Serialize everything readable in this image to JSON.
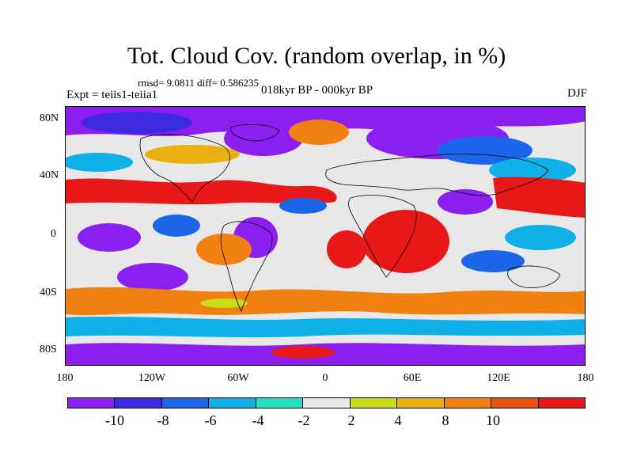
{
  "title": "Tot. Cloud Cov. (random overlap, in %)",
  "stats": "rmsd= 9.0811 diff= 0.586235",
  "experiment": "Expt = teiis1-teiia1",
  "period": "018kyr BP - 000kyr BP",
  "season": "DJF",
  "lat_labels": [
    "80N",
    "40N",
    "0",
    "40S",
    "80S"
  ],
  "lon_labels": [
    "180",
    "120W",
    "60W",
    "0",
    "60E",
    "120E",
    "180"
  ],
  "colorbar": {
    "colors": [
      "#8a1ff0",
      "#3d2ae0",
      "#1b66e8",
      "#0fb0e8",
      "#22e0c0",
      "#e8e8e8",
      "#c8dc18",
      "#e8b010",
      "#f08010",
      "#e85010",
      "#e81818"
    ],
    "labels": [
      "-10",
      "-8",
      "-6",
      "-4",
      "-2",
      "2",
      "4",
      "8",
      "10"
    ]
  },
  "map_colors": {
    "strong_neg": "#8a1ff0",
    "neg": "#3d2ae0",
    "mid_neg": "#1b66e8",
    "light_neg": "#0fb0e8",
    "cyan": "#22e0c0",
    "neutral": "#e8e8e8",
    "yellow": "#c8dc18",
    "light_pos": "#e8b010",
    "pos": "#f08010",
    "strong_pos": "#e81818"
  }
}
